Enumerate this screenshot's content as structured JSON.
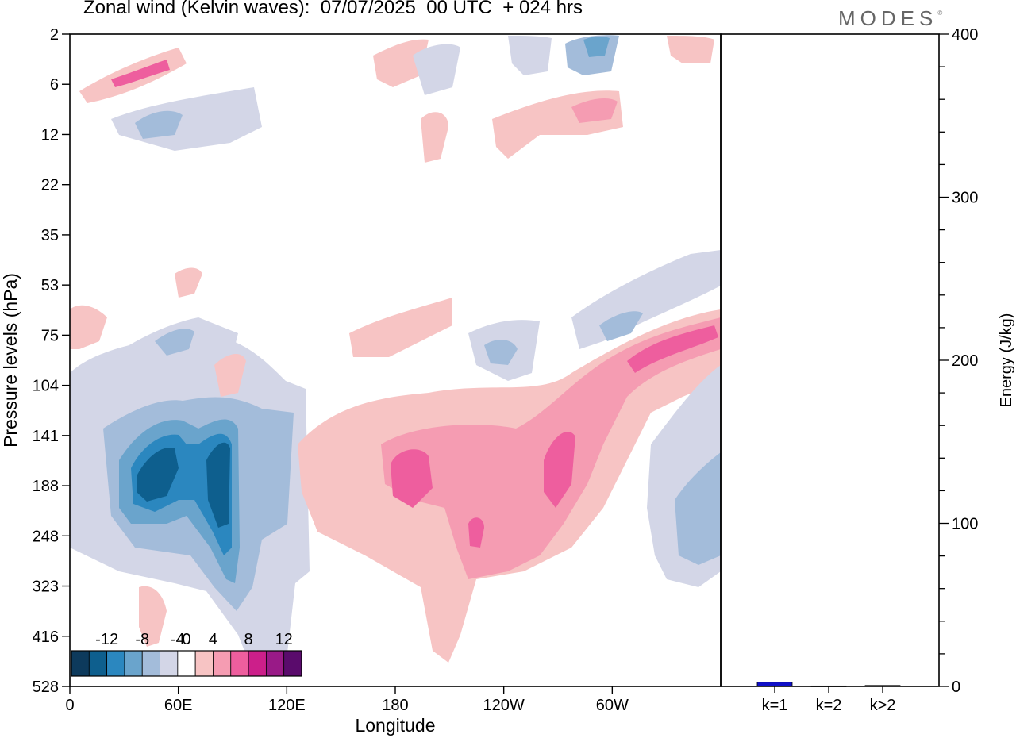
{
  "title": "Zonal wind (Kelvin waves):  07/07/2025  00 UTC  + 024 hrs",
  "logo": "MODES",
  "chart_data": [
    {
      "type": "heatmap",
      "title": "Zonal wind (Kelvin waves):  07/07/2025  00 UTC  + 024 hrs",
      "xlabel": "Longitude",
      "ylabel": "Pressure levels (hPa)",
      "x_ticks": [
        "0",
        "60E",
        "120E",
        "180",
        "120W",
        "60W"
      ],
      "x_tick_values": [
        0,
        60,
        120,
        180,
        240,
        300
      ],
      "xlim": [
        0,
        360
      ],
      "y_ticks": [
        "2",
        "6",
        "12",
        "22",
        "35",
        "53",
        "75",
        "104",
        "141",
        "188",
        "248",
        "323",
        "416",
        "528"
      ],
      "y_inverted": true,
      "colorbar": {
        "labels": [
          "-12",
          "-8",
          "-4",
          "0",
          "4",
          "8",
          "12"
        ],
        "levels": [
          -14,
          -12,
          -10,
          -8,
          -6,
          -4,
          -2,
          2,
          4,
          6,
          8,
          10,
          12,
          14
        ],
        "colors": [
          "#0d3a5c",
          "#0e5f8e",
          "#2b87bf",
          "#6aa4cc",
          "#a3bcda",
          "#d3d6e7",
          "#ffffff",
          "#f7c4c4",
          "#f59cb2",
          "#ee5e9e",
          "#cc1f8a",
          "#991a87",
          "#5a0b6c"
        ]
      },
      "features": [
        {
          "sign": "negative",
          "peak": -12,
          "longitude_range": [
            25,
            95
          ],
          "pressure_range": [
            104,
            416
          ]
        },
        {
          "sign": "positive",
          "peak": 8,
          "longitude_range": [
            130,
            290
          ],
          "pressure_range": [
            104,
            416
          ]
        },
        {
          "sign": "positive",
          "peak": 8,
          "longitude_range": [
            210,
            360
          ],
          "pressure_range": [
            75,
            248
          ]
        },
        {
          "sign": "negative",
          "peak": -4,
          "longitude_range": [
            300,
            360
          ],
          "pressure_range": [
            104,
            416
          ]
        },
        {
          "sign": "positive",
          "peak": 8,
          "longitude_range": [
            10,
            60
          ],
          "pressure_range": [
            2,
            12
          ]
        },
        {
          "sign": "negative",
          "peak": -6,
          "longitude_range": [
            270,
            310
          ],
          "pressure_range": [
            2,
            12
          ]
        }
      ]
    },
    {
      "type": "bar",
      "categories": [
        "k=1",
        "k=2",
        "k>2"
      ],
      "values": [
        2.6,
        0.3,
        0.6
      ],
      "ylabel": "Energy (J/kg)",
      "ylim": [
        0,
        400
      ],
      "y_ticks": [
        "0",
        "100",
        "200",
        "300",
        "400"
      ],
      "bar_color": "#1010c8"
    }
  ]
}
